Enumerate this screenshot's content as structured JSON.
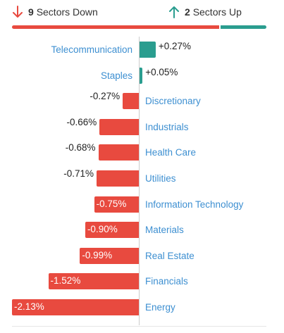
{
  "summary": {
    "down_count": "9",
    "down_label": "Sectors Down",
    "up_count": "2",
    "up_label": "Sectors Up",
    "down_color": "#e84a3f",
    "up_color": "#2a9d8f",
    "down_icon": "arrow-down-icon",
    "up_icon": "arrow-up-icon"
  },
  "chart_data": {
    "type": "bar",
    "orientation": "horizontal-diverging",
    "categories": [
      "Telecommunication",
      "Staples",
      "Discretionary",
      "Industrials",
      "Health Care",
      "Utilities",
      "Information Technology",
      "Materials",
      "Real Estate",
      "Financials",
      "Energy"
    ],
    "values": [
      0.27,
      0.05,
      -0.27,
      -0.66,
      -0.68,
      -0.71,
      -0.75,
      -0.9,
      -0.99,
      -1.52,
      -2.13
    ],
    "labels": [
      "+0.27%",
      "+0.05%",
      "-0.27%",
      "-0.66%",
      "-0.68%",
      "-0.71%",
      "-0.75%",
      "-0.90%",
      "-0.99%",
      "-1.52%",
      "-2.13%"
    ],
    "unit": "%",
    "positive_color": "#2a9d8f",
    "negative_color": "#e84a3f"
  }
}
